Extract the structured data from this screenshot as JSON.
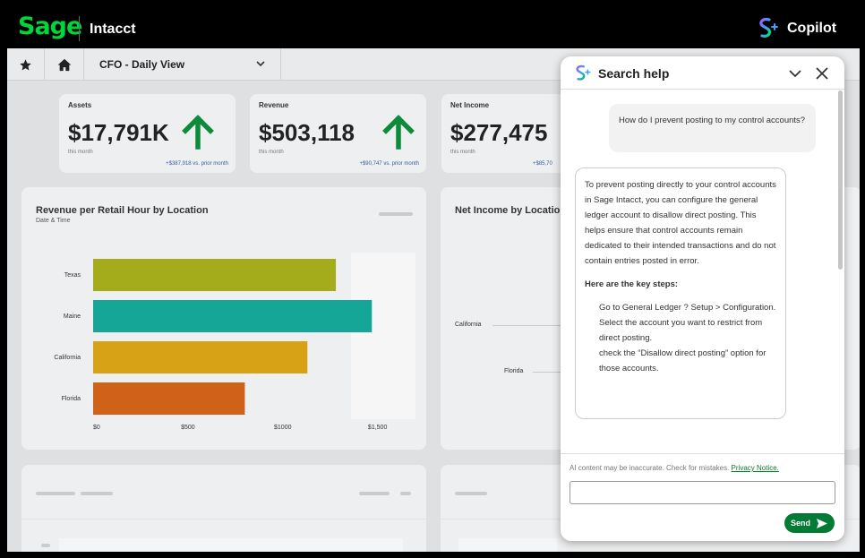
{
  "header": {
    "logo": "Sage",
    "product": "Intacct",
    "copilot_label": "Copilot"
  },
  "toolbar": {
    "dashboard_name": "CFO - Daily View"
  },
  "kpis": [
    {
      "label": "Assets",
      "value": "$17,791K",
      "period": "this month",
      "delta": "+$387,918 vs. prior month"
    },
    {
      "label": "Revenue",
      "value": "$503,118",
      "period": "this month",
      "delta": "+$90,747 vs. prior month"
    },
    {
      "label": "Net Income",
      "value": "$277,475",
      "period": "this month",
      "delta": "+$85,70"
    }
  ],
  "charts": {
    "revenue": {
      "title": "Revenue per Retail Hour by Location",
      "subtitle": "Date & Time"
    },
    "netincome": {
      "title": "Net Income by Location",
      "labels": [
        "California",
        "Florida"
      ]
    }
  },
  "chart_data": {
    "type": "bar",
    "orientation": "horizontal",
    "title": "Revenue per Retail Hour by Location",
    "subtitle": "Date & Time",
    "categories": [
      "Texas",
      "Maine",
      "California",
      "Florida"
    ],
    "values": [
      1280,
      1470,
      1130,
      800
    ],
    "colors": [
      "#a4ac1c",
      "#16a697",
      "#d8a216",
      "#cf6118"
    ],
    "xticks": [
      "$0",
      "$500",
      "$1000",
      "$1,500"
    ],
    "tick_values": [
      0,
      500,
      1000,
      1500
    ],
    "xlim": [
      0,
      1700
    ]
  },
  "panel": {
    "title": "Search help",
    "user_message": "How do I prevent posting to my control accounts?",
    "bot_intro": "To prevent posting directly to your control accounts in Sage Intacct, you can configure the general ledger account to disallow direct posting. This helps ensure that control accounts remain dedicated to their intended transactions and do not contain entries posted in error.",
    "bot_steps_heading": "Here are the key steps:",
    "bot_step_1": "Go to General Ledger ? Setup > Configuration.",
    "bot_step_2": "Select the account you want to restrict from direct posting.",
    "bot_step_3": "check the “Disallow direct posting” option for those accounts.",
    "disclaimer": "AI content may be inaccurate. Check for mistakes.",
    "privacy_link": "Privacy Notice.",
    "input_value": "",
    "send_label": "Send"
  },
  "colors": {
    "accent": "#037b37",
    "sage_green": "#00d639",
    "arrow_green": "#0e8a3b"
  }
}
